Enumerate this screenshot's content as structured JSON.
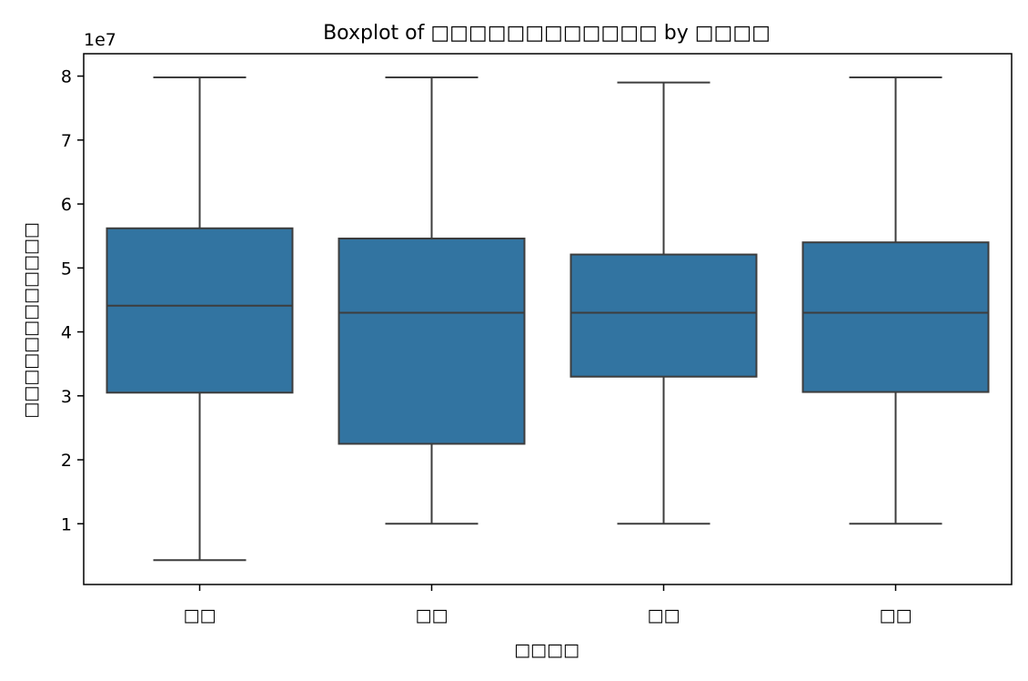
{
  "chart_data": {
    "type": "box",
    "title": "Boxplot of □□□□□□□□□□□□ by □□□□",
    "xlabel": "□□□□",
    "ylabel": "□□□□□□□□□□□□",
    "y_offset_label": "1e7",
    "y_scale": 10000000,
    "ylim": [
      0.05,
      8.35
    ],
    "yticks": [
      1,
      2,
      3,
      4,
      5,
      6,
      7,
      8
    ],
    "categories": [
      "□□",
      "□□",
      "□□",
      "□□"
    ],
    "boxes": [
      {
        "category": "□□",
        "whisker_low": 0.43,
        "q1": 3.05,
        "median": 4.41,
        "q3": 5.62,
        "whisker_high": 7.98
      },
      {
        "category": "□□",
        "whisker_low": 1.0,
        "q1": 2.25,
        "median": 4.3,
        "q3": 5.46,
        "whisker_high": 7.98
      },
      {
        "category": "□□",
        "whisker_low": 1.0,
        "q1": 3.3,
        "median": 4.3,
        "q3": 5.21,
        "whisker_high": 7.9
      },
      {
        "category": "□□",
        "whisker_low": 1.0,
        "q1": 3.06,
        "median": 4.3,
        "q3": 5.4,
        "whisker_high": 7.98
      }
    ],
    "box_color": "#3274a1",
    "line_color": "#3d3d3d",
    "grid": false,
    "legend": "none"
  }
}
